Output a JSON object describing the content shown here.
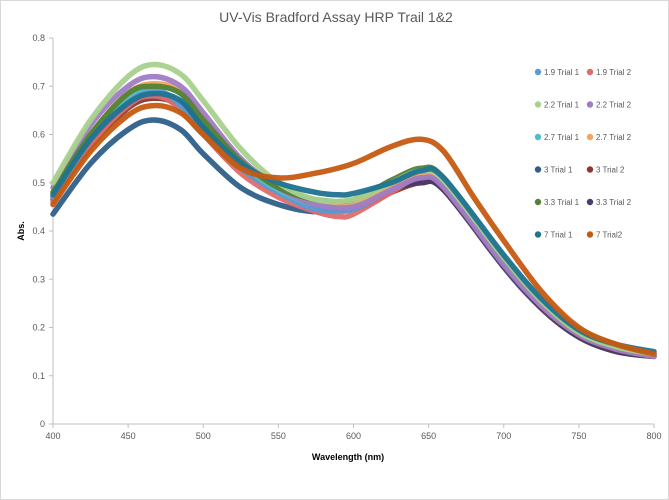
{
  "chart_data": {
    "type": "scatter",
    "title": "UV-Vis Bradford Assay HRP Trail 1&2",
    "xlabel": "Wavelength (nm)",
    "ylabel": "Abs.",
    "xlim": [
      400,
      800
    ],
    "ylim": [
      0,
      0.8
    ],
    "xticks": [
      400,
      450,
      500,
      550,
      600,
      650,
      700,
      750,
      800
    ],
    "yticks": [
      0,
      0.1,
      0.2,
      0.3,
      0.4,
      0.5,
      0.6,
      0.7,
      0.8
    ],
    "grid": false,
    "legend_position": "right",
    "series": [
      {
        "name": "1.9 Trial 1",
        "color": "#5b9bd5",
        "points": [
          [
            400,
            0.47
          ],
          [
            425,
            0.59
          ],
          [
            450,
            0.67
          ],
          [
            465,
            0.69
          ],
          [
            480,
            0.675
          ],
          [
            500,
            0.6
          ],
          [
            525,
            0.53
          ],
          [
            550,
            0.48
          ],
          [
            575,
            0.445
          ],
          [
            600,
            0.445
          ],
          [
            625,
            0.49
          ],
          [
            645,
            0.52
          ],
          [
            660,
            0.5
          ],
          [
            700,
            0.34
          ],
          [
            725,
            0.25
          ],
          [
            750,
            0.19
          ],
          [
            775,
            0.16
          ],
          [
            800,
            0.145
          ]
        ]
      },
      {
        "name": "1.9 Trial 2",
        "color": "#e06b6b",
        "points": [
          [
            400,
            0.46
          ],
          [
            425,
            0.58
          ],
          [
            450,
            0.66
          ],
          [
            465,
            0.68
          ],
          [
            480,
            0.665
          ],
          [
            500,
            0.6
          ],
          [
            525,
            0.52
          ],
          [
            550,
            0.47
          ],
          [
            575,
            0.44
          ],
          [
            590,
            0.43
          ],
          [
            600,
            0.435
          ],
          [
            625,
            0.48
          ],
          [
            645,
            0.515
          ],
          [
            660,
            0.495
          ],
          [
            700,
            0.335
          ],
          [
            725,
            0.245
          ],
          [
            750,
            0.185
          ],
          [
            775,
            0.155
          ],
          [
            800,
            0.14
          ]
        ]
      },
      {
        "name": "2.2 Trial 1",
        "color": "#a9d18e",
        "points": [
          [
            400,
            0.5
          ],
          [
            425,
            0.63
          ],
          [
            450,
            0.72
          ],
          [
            467,
            0.745
          ],
          [
            485,
            0.725
          ],
          [
            500,
            0.67
          ],
          [
            525,
            0.57
          ],
          [
            550,
            0.5
          ],
          [
            575,
            0.465
          ],
          [
            600,
            0.465
          ],
          [
            625,
            0.5
          ],
          [
            645,
            0.525
          ],
          [
            660,
            0.505
          ],
          [
            700,
            0.345
          ],
          [
            725,
            0.255
          ],
          [
            750,
            0.19
          ],
          [
            775,
            0.16
          ],
          [
            800,
            0.145
          ]
        ]
      },
      {
        "name": "2.2 Trial 2",
        "color": "#a07cc5",
        "points": [
          [
            400,
            0.49
          ],
          [
            425,
            0.62
          ],
          [
            450,
            0.7
          ],
          [
            467,
            0.72
          ],
          [
            485,
            0.7
          ],
          [
            500,
            0.645
          ],
          [
            525,
            0.55
          ],
          [
            550,
            0.49
          ],
          [
            575,
            0.455
          ],
          [
            600,
            0.45
          ],
          [
            625,
            0.485
          ],
          [
            645,
            0.51
          ],
          [
            660,
            0.49
          ],
          [
            700,
            0.33
          ],
          [
            725,
            0.245
          ],
          [
            750,
            0.185
          ],
          [
            775,
            0.155
          ],
          [
            800,
            0.14
          ]
        ]
      },
      {
        "name": "2.7 Trial 1",
        "color": "#4bc0c8",
        "points": [
          [
            400,
            0.48
          ],
          [
            425,
            0.6
          ],
          [
            450,
            0.68
          ],
          [
            467,
            0.7
          ],
          [
            485,
            0.685
          ],
          [
            500,
            0.63
          ],
          [
            525,
            0.54
          ],
          [
            550,
            0.485
          ],
          [
            575,
            0.455
          ],
          [
            600,
            0.455
          ],
          [
            625,
            0.495
          ],
          [
            645,
            0.525
          ],
          [
            660,
            0.505
          ],
          [
            700,
            0.34
          ],
          [
            725,
            0.25
          ],
          [
            750,
            0.19
          ],
          [
            775,
            0.16
          ],
          [
            800,
            0.145
          ]
        ]
      },
      {
        "name": "2.7 Trial 2",
        "color": "#f4a460",
        "points": [
          [
            400,
            0.475
          ],
          [
            425,
            0.6
          ],
          [
            450,
            0.685
          ],
          [
            467,
            0.705
          ],
          [
            485,
            0.69
          ],
          [
            500,
            0.635
          ],
          [
            525,
            0.545
          ],
          [
            550,
            0.49
          ],
          [
            575,
            0.46
          ],
          [
            600,
            0.455
          ],
          [
            625,
            0.49
          ],
          [
            645,
            0.52
          ],
          [
            660,
            0.5
          ],
          [
            700,
            0.34
          ],
          [
            725,
            0.25
          ],
          [
            750,
            0.19
          ],
          [
            775,
            0.16
          ],
          [
            800,
            0.145
          ]
        ]
      },
      {
        "name": "3 Trial 1",
        "color": "#2e5f8a",
        "points": [
          [
            400,
            0.435
          ],
          [
            425,
            0.54
          ],
          [
            450,
            0.61
          ],
          [
            467,
            0.63
          ],
          [
            485,
            0.61
          ],
          [
            500,
            0.56
          ],
          [
            525,
            0.49
          ],
          [
            550,
            0.455
          ],
          [
            575,
            0.44
          ],
          [
            600,
            0.45
          ],
          [
            625,
            0.49
          ],
          [
            645,
            0.505
          ],
          [
            660,
            0.49
          ],
          [
            700,
            0.335
          ],
          [
            725,
            0.245
          ],
          [
            750,
            0.185
          ],
          [
            775,
            0.155
          ],
          [
            800,
            0.14
          ]
        ]
      },
      {
        "name": "3 Trial 2",
        "color": "#8b3a2a",
        "points": [
          [
            400,
            0.465
          ],
          [
            425,
            0.575
          ],
          [
            450,
            0.655
          ],
          [
            467,
            0.675
          ],
          [
            485,
            0.66
          ],
          [
            500,
            0.61
          ],
          [
            525,
            0.53
          ],
          [
            550,
            0.48
          ],
          [
            575,
            0.45
          ],
          [
            600,
            0.445
          ],
          [
            625,
            0.48
          ],
          [
            645,
            0.5
          ],
          [
            660,
            0.485
          ],
          [
            700,
            0.33
          ],
          [
            725,
            0.24
          ],
          [
            750,
            0.18
          ],
          [
            775,
            0.15
          ],
          [
            800,
            0.14
          ]
        ]
      },
      {
        "name": "3.3 Trial 1",
        "color": "#548235",
        "points": [
          [
            400,
            0.48
          ],
          [
            425,
            0.6
          ],
          [
            450,
            0.685
          ],
          [
            467,
            0.7
          ],
          [
            485,
            0.685
          ],
          [
            500,
            0.63
          ],
          [
            525,
            0.545
          ],
          [
            550,
            0.49
          ],
          [
            575,
            0.465
          ],
          [
            600,
            0.465
          ],
          [
            625,
            0.505
          ],
          [
            645,
            0.53
          ],
          [
            660,
            0.51
          ],
          [
            700,
            0.345
          ],
          [
            725,
            0.255
          ],
          [
            750,
            0.19
          ],
          [
            775,
            0.16
          ],
          [
            800,
            0.145
          ]
        ]
      },
      {
        "name": "3.3 Trial 2",
        "color": "#4b3a6b",
        "points": [
          [
            400,
            0.47
          ],
          [
            425,
            0.58
          ],
          [
            450,
            0.66
          ],
          [
            467,
            0.68
          ],
          [
            485,
            0.665
          ],
          [
            500,
            0.615
          ],
          [
            525,
            0.535
          ],
          [
            550,
            0.485
          ],
          [
            575,
            0.455
          ],
          [
            600,
            0.45
          ],
          [
            625,
            0.485
          ],
          [
            645,
            0.5
          ],
          [
            660,
            0.485
          ],
          [
            700,
            0.325
          ],
          [
            725,
            0.24
          ],
          [
            750,
            0.18
          ],
          [
            775,
            0.15
          ],
          [
            800,
            0.14
          ]
        ]
      },
      {
        "name": "7 Trial 1",
        "color": "#1f7391",
        "points": [
          [
            400,
            0.475
          ],
          [
            425,
            0.59
          ],
          [
            450,
            0.665
          ],
          [
            467,
            0.685
          ],
          [
            485,
            0.67
          ],
          [
            500,
            0.615
          ],
          [
            525,
            0.54
          ],
          [
            550,
            0.5
          ],
          [
            575,
            0.48
          ],
          [
            590,
            0.475
          ],
          [
            600,
            0.478
          ],
          [
            625,
            0.5
          ],
          [
            645,
            0.525
          ],
          [
            660,
            0.51
          ],
          [
            700,
            0.35
          ],
          [
            725,
            0.26
          ],
          [
            750,
            0.195
          ],
          [
            775,
            0.165
          ],
          [
            800,
            0.15
          ]
        ]
      },
      {
        "name": "7 Trial2",
        "color": "#c55a11",
        "points": [
          [
            400,
            0.455
          ],
          [
            425,
            0.565
          ],
          [
            450,
            0.64
          ],
          [
            467,
            0.66
          ],
          [
            485,
            0.645
          ],
          [
            500,
            0.6
          ],
          [
            525,
            0.53
          ],
          [
            550,
            0.51
          ],
          [
            575,
            0.52
          ],
          [
            600,
            0.54
          ],
          [
            625,
            0.575
          ],
          [
            645,
            0.59
          ],
          [
            660,
            0.565
          ],
          [
            680,
            0.47
          ],
          [
            700,
            0.38
          ],
          [
            725,
            0.275
          ],
          [
            750,
            0.2
          ],
          [
            775,
            0.165
          ],
          [
            800,
            0.145
          ]
        ]
      }
    ]
  }
}
